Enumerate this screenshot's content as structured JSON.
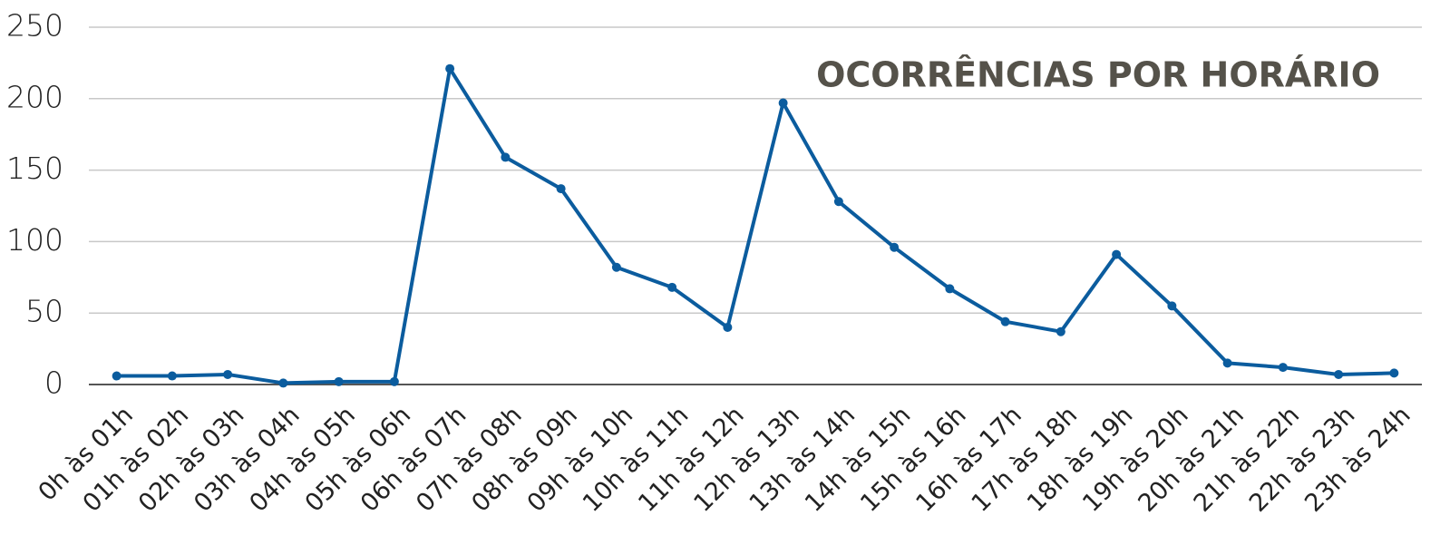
{
  "chart_data": {
    "type": "line",
    "title": "OCORRÊNCIAS POR HORÁRIO",
    "categories": [
      "0h às 01h",
      "01h às 02h",
      "02h às 03h",
      "03h às 04h",
      "04h às 05h",
      "05h às 06h",
      "06h às 07h",
      "07h às 08h",
      "08h às 09h",
      "09h às 10h",
      "10h às 11h",
      "11h às 12h",
      "12h às 13h",
      "13h às 14h",
      "14h às 15h",
      "15h às 16h",
      "16h às 17h",
      "17h às 18h",
      "18h às 19h",
      "19h às 20h",
      "20h às 21h",
      "21h às 22h",
      "22h às 23h",
      "23h às 24h"
    ],
    "values": [
      6,
      6,
      7,
      1,
      2,
      2,
      221,
      159,
      137,
      82,
      68,
      40,
      197,
      128,
      96,
      67,
      44,
      37,
      91,
      55,
      15,
      12,
      7,
      8
    ],
    "color": "#0b5c9e",
    "ylim": [
      0,
      250
    ],
    "yticks": [
      0,
      50,
      100,
      150,
      200,
      250
    ],
    "grid": true
  }
}
